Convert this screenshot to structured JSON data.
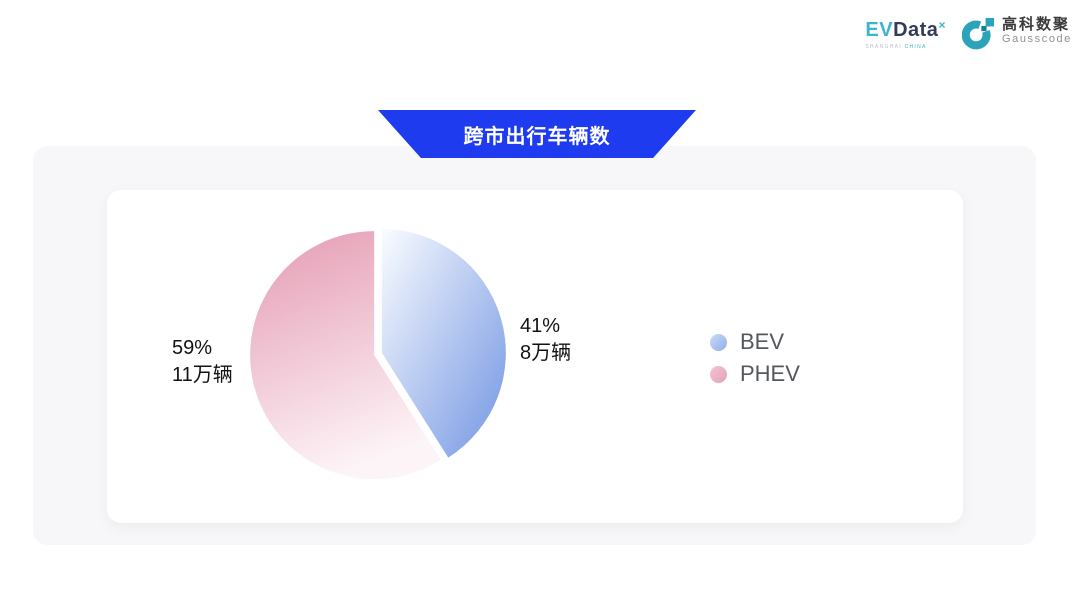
{
  "header": {
    "evdata": {
      "part1": "EV",
      "part2": "Data",
      "sup": "×",
      "sub_left": "SHANGHAI",
      "sub_right": "CHINA"
    },
    "gausscode": {
      "cn": "高科数聚",
      "en": "Gausscode",
      "mark_color": "#2ba4ba",
      "mark_accent": "#15809b"
    }
  },
  "banner": {
    "title": "跨市出行车辆数",
    "color": "#1e3bf0"
  },
  "chart_data": {
    "type": "pie",
    "title": "跨市出行车辆数",
    "unit": "万辆",
    "legend_position": "right",
    "start_angle_deg": 0,
    "direction": "clockwise",
    "series": [
      {
        "name": "BEV",
        "value": 8,
        "percent": 41,
        "label": "41%",
        "sublabel": "8万辆",
        "gradient": {
          "from": "#fafcff",
          "to": "#7295e2"
        },
        "legend_dot": {
          "from": "#c9daf7",
          "to": "#90aee8"
        }
      },
      {
        "name": "PHEV",
        "value": 11,
        "percent": 59,
        "label": "59%",
        "sublabel": "11万辆",
        "gradient": {
          "from": "#e59db4",
          "to": "#fdf4f7"
        },
        "legend_dot": {
          "from": "#f2c6d4",
          "to": "#e5a0b8"
        }
      }
    ]
  }
}
